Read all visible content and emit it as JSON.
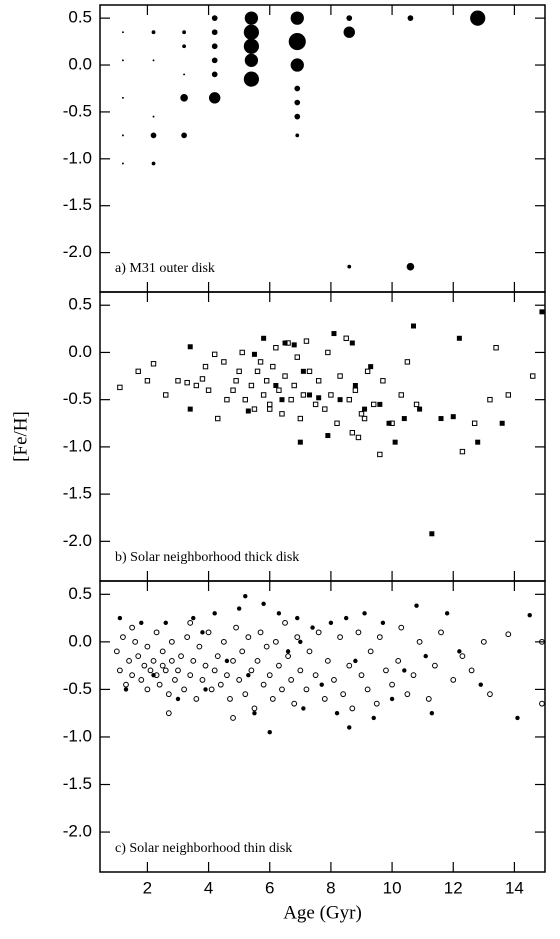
{
  "chart_data": [
    {
      "type": "scatter",
      "annotation": "a) M31 outer disk",
      "xlim": [
        0.45,
        15.0
      ],
      "ylim": [
        -2.42,
        0.64
      ],
      "yticks": [
        0.5,
        {
          "value": 0,
          "label": "0.0"
        },
        -0.5,
        {
          "value": -1,
          "label": "-1.0"
        },
        -1.5,
        {
          "value": -2,
          "label": "-2.0"
        }
      ],
      "series": [
        {
          "marker": "circle-filled",
          "color": "#000000",
          "x": [
            1.2,
            1.2,
            1.2,
            1.2,
            1.2,
            2.2,
            2.2,
            2.2,
            2.2,
            2.2,
            3.2,
            3.2,
            3.2,
            3.2,
            3.2,
            4.2,
            4.2,
            4.2,
            4.2,
            4.2,
            4.2,
            5.4,
            5.4,
            5.4,
            5.4,
            5.4,
            6.9,
            6.9,
            6.9,
            6.9,
            6.9,
            6.9,
            6.9,
            8.6,
            8.6,
            8.6,
            10.6,
            10.6,
            12.8
          ],
          "values": [
            0.35,
            0.05,
            -0.35,
            -0.75,
            -1.05,
            0.35,
            0.05,
            -0.55,
            -0.75,
            -1.05,
            0.35,
            0.2,
            -0.1,
            -0.35,
            -0.75,
            0.5,
            0.35,
            0.2,
            0.05,
            -0.1,
            -0.35,
            0.5,
            0.35,
            0.2,
            0.05,
            -0.15,
            0.5,
            0.25,
            0,
            -0.25,
            -0.4,
            -0.55,
            -0.75,
            0.5,
            0.35,
            -2.15,
            0.5,
            -2.15,
            0.5
          ],
          "sizes": [
            1,
            1,
            1,
            1,
            1,
            2,
            1,
            1,
            3,
            2,
            2,
            2,
            1,
            4,
            3,
            3,
            3,
            3,
            3,
            3,
            6,
            7,
            8,
            8,
            7,
            8,
            7,
            9,
            7,
            3,
            3,
            3,
            2,
            3,
            6,
            2,
            3,
            4,
            8
          ]
        }
      ]
    },
    {
      "type": "scatter",
      "annotation": "b) Solar neighborhood thick disk",
      "ylabel": "[Fe/H]",
      "xlim": [
        0.45,
        15.0
      ],
      "ylim": [
        -2.42,
        0.64
      ],
      "yticks": [
        0.5,
        {
          "value": 0,
          "label": "0.0"
        },
        -0.5,
        {
          "value": -1,
          "label": "-1.0"
        },
        -1.5,
        {
          "value": -2,
          "label": "-2.0"
        }
      ],
      "series": [
        {
          "marker": "square-open",
          "color": "#000000",
          "x": [
            1.1,
            1.7,
            2.0,
            2.2,
            3.0,
            3.3,
            3.6,
            3.8,
            3.9,
            4.0,
            4.2,
            4.5,
            4.6,
            4.8,
            4.9,
            5.0,
            5.1,
            5.2,
            5.4,
            5.5,
            5.6,
            5.7,
            5.8,
            5.9,
            6.0,
            6.1,
            6.2,
            6.3,
            6.4,
            6.5,
            6.6,
            6.7,
            6.8,
            6.9,
            7.0,
            7.1,
            7.2,
            7.3,
            7.5,
            7.6,
            7.8,
            7.9,
            8.0,
            8.2,
            8.3,
            8.5,
            8.6,
            8.7,
            8.8,
            9.0,
            9.2,
            9.4,
            9.6,
            9.7,
            10.0,
            10.3,
            10.5,
            10.8,
            12.3,
            12.7,
            13.2,
            13.4,
            13.8,
            14.6,
            2.6,
            4.3,
            6.0,
            8.9,
            9.1
          ],
          "values": [
            -0.37,
            -0.2,
            -0.3,
            -0.12,
            -0.3,
            -0.32,
            -0.35,
            -0.28,
            -0.15,
            -0.4,
            -0.02,
            -0.1,
            -0.5,
            -0.4,
            -0.3,
            -0.2,
            0,
            -0.5,
            -0.35,
            -0.6,
            -0.2,
            -0.1,
            -0.45,
            -0.3,
            -0.55,
            -0.15,
            0.05,
            -0.4,
            -0.65,
            -0.25,
            0.1,
            -0.5,
            -0.35,
            -0.05,
            -0.7,
            -0.45,
            0.12,
            -0.2,
            -0.55,
            -0.3,
            -0.6,
            0,
            -0.45,
            -0.75,
            -0.25,
            0.15,
            -0.5,
            -0.85,
            -0.4,
            -0.65,
            -0.2,
            -0.55,
            -1.08,
            -0.3,
            -0.75,
            -0.45,
            -0.1,
            -0.55,
            -1.05,
            -0.75,
            -0.5,
            0.05,
            -0.45,
            -0.25,
            -0.45,
            -0.7,
            -0.6,
            -0.9,
            -0.7
          ]
        },
        {
          "marker": "square-filled",
          "color": "#000000",
          "x": [
            3.4,
            3.4,
            5.3,
            5.8,
            6.2,
            6.5,
            6.8,
            7.0,
            7.3,
            7.6,
            7.9,
            8.1,
            8.3,
            8.7,
            8.8,
            9.1,
            9.3,
            9.6,
            9.9,
            10.1,
            10.4,
            10.7,
            10.9,
            11.3,
            11.6,
            12.0,
            12.2,
            12.8,
            13.6,
            14.9,
            6.4,
            7.1,
            5.5
          ],
          "values": [
            -0.6,
            0.06,
            -0.62,
            0.15,
            -0.35,
            0.1,
            0.08,
            -0.95,
            -0.45,
            -0.48,
            -0.88,
            0.2,
            -0.5,
            0.1,
            -0.35,
            -0.6,
            -0.15,
            -0.55,
            -0.75,
            -0.95,
            -0.7,
            0.28,
            -0.6,
            -1.92,
            -0.7,
            -0.68,
            0.15,
            -0.95,
            -0.75,
            0.43,
            -0.5,
            -0.2,
            -0.02
          ]
        }
      ]
    },
    {
      "type": "scatter",
      "annotation": "c) Solar neighborhood thin disk",
      "xlabel": "Age (Gyr)",
      "xlim": [
        0.45,
        15.0
      ],
      "ylim": [
        -2.42,
        0.64
      ],
      "xticks": [
        2,
        4,
        6,
        8,
        10,
        12,
        14
      ],
      "yticks": [
        0.5,
        {
          "value": 0,
          "label": "0.0"
        },
        -0.5,
        {
          "value": -1,
          "label": "-1.0"
        },
        -1.5,
        {
          "value": -2,
          "label": "-2.0"
        }
      ],
      "series": [
        {
          "marker": "circle-open",
          "color": "#000000",
          "x": [
            1.0,
            1.1,
            1.2,
            1.3,
            1.4,
            1.5,
            1.6,
            1.7,
            1.8,
            1.9,
            2.0,
            2.0,
            2.1,
            2.2,
            2.3,
            2.3,
            2.4,
            2.5,
            2.5,
            2.6,
            2.7,
            2.8,
            2.8,
            2.9,
            3.0,
            3.1,
            3.2,
            3.3,
            3.4,
            3.5,
            3.6,
            3.7,
            3.8,
            3.9,
            4.0,
            4.1,
            4.2,
            4.3,
            4.4,
            4.5,
            4.6,
            4.7,
            4.8,
            4.9,
            5.0,
            5.1,
            5.2,
            5.3,
            5.4,
            5.5,
            5.6,
            5.7,
            5.8,
            5.9,
            6.0,
            6.1,
            6.2,
            6.3,
            6.4,
            6.5,
            6.6,
            6.7,
            6.8,
            6.9,
            7.0,
            7.2,
            7.3,
            7.5,
            7.6,
            7.8,
            7.9,
            8.1,
            8.3,
            8.4,
            8.6,
            8.7,
            8.9,
            9.0,
            9.2,
            9.3,
            9.5,
            9.6,
            9.8,
            10.0,
            10.2,
            10.3,
            10.5,
            10.7,
            10.9,
            11.2,
            11.4,
            11.6,
            12.0,
            12.3,
            12.6,
            13.0,
            13.2,
            13.8,
            14.9,
            14.9,
            4.8,
            2.7,
            3.4,
            1.5
          ],
          "values": [
            -0.1,
            -0.3,
            0.05,
            -0.45,
            -0.2,
            -0.35,
            0,
            -0.15,
            -0.4,
            -0.25,
            -0.05,
            -0.5,
            -0.3,
            -0.2,
            -0.35,
            0.1,
            -0.45,
            -0.25,
            -0.1,
            -0.3,
            -0.55,
            -0.2,
            0,
            -0.4,
            -0.3,
            -0.15,
            -0.5,
            0.05,
            -0.35,
            -0.2,
            -0.6,
            -0.05,
            -0.4,
            -0.25,
            0.1,
            -0.5,
            -0.3,
            -0.15,
            -0.45,
            0,
            -0.35,
            -0.6,
            -0.2,
            0.15,
            -0.4,
            -0.1,
            -0.55,
            0.05,
            -0.3,
            -0.7,
            -0.2,
            0.1,
            -0.45,
            -0.05,
            -0.35,
            -0.6,
            0,
            -0.25,
            -0.5,
            0.2,
            -0.15,
            -0.4,
            -0.65,
            0.05,
            -0.3,
            -0.5,
            -0.1,
            -0.35,
            0.1,
            -0.6,
            -0.2,
            -0.4,
            0.05,
            -0.55,
            -0.25,
            -0.7,
            0.1,
            -0.35,
            -0.5,
            -0.1,
            -0.65,
            0.05,
            -0.3,
            -0.45,
            -0.2,
            0.15,
            -0.55,
            -0.35,
            0,
            -0.6,
            -0.25,
            0.1,
            -0.4,
            -0.15,
            -0.3,
            0,
            -0.55,
            0.08,
            0,
            -0.65,
            -0.8,
            -0.75,
            0.2,
            0.15
          ]
        },
        {
          "marker": "circle-filled",
          "color": "#000000",
          "x": [
            1.1,
            1.3,
            1.8,
            2.2,
            2.6,
            3.0,
            3.5,
            3.9,
            4.2,
            4.6,
            5.0,
            5.2,
            5.5,
            5.8,
            6.0,
            6.3,
            6.6,
            6.9,
            7.1,
            7.4,
            7.7,
            8.0,
            8.2,
            8.5,
            8.8,
            9.1,
            9.4,
            9.7,
            10.0,
            10.4,
            10.8,
            11.1,
            11.3,
            11.8,
            12.2,
            12.9,
            14.5,
            14.1,
            3.8,
            5.3,
            7.0,
            8.6
          ],
          "values": [
            0.25,
            -0.5,
            0.2,
            -0.35,
            0.2,
            -0.6,
            0.25,
            -0.5,
            0.3,
            -0.2,
            0.35,
            0.48,
            -0.75,
            0.4,
            -0.95,
            0.3,
            -0.1,
            0.25,
            -0.7,
            0.15,
            -0.45,
            0.2,
            -0.75,
            0.25,
            -0.2,
            0.3,
            -0.8,
            0.2,
            -0.6,
            -0.3,
            0.38,
            -0.15,
            -0.75,
            0.3,
            -0.1,
            -0.45,
            0.28,
            -0.8,
            0.1,
            -0.35,
            0,
            -0.9
          ]
        }
      ]
    }
  ]
}
